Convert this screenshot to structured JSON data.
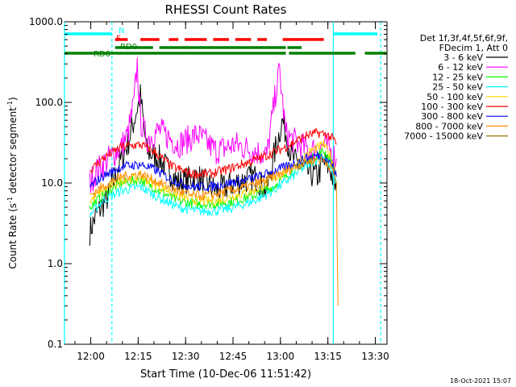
{
  "chart_data": {
    "type": "line",
    "title": "RHESSI Count Rates",
    "xlabel": "Start Time (10-Dec-06 11:51:42)",
    "ylabel_main": "Count Rate (s",
    "ylabel_sup1": "-1",
    "ylabel_mid": " detector segment",
    "ylabel_sup2": "-1",
    "ylabel_end": ")",
    "x_scale": "time_minutes_from_11:51:42",
    "xlim": [
      0,
      102
    ],
    "y_scale": "log",
    "ylim": [
      0.1,
      1000
    ],
    "x_ticks": [
      {
        "label": "12:00",
        "x": 8.3
      },
      {
        "label": "12:15",
        "x": 23.3
      },
      {
        "label": "12:30",
        "x": 38.3
      },
      {
        "label": "12:45",
        "x": 53.3
      },
      {
        "label": "13:00",
        "x": 68.3
      },
      {
        "label": "13:15",
        "x": 83.3
      },
      {
        "label": "13:30",
        "x": 98.3
      }
    ],
    "y_ticks": [
      {
        "label": "0.1",
        "y": 0.1
      },
      {
        "label": "1.0",
        "y": 1
      },
      {
        "label": "10.0",
        "y": 10
      },
      {
        "label": "100.0",
        "y": 100
      },
      {
        "label": "1000.0",
        "y": 1000
      }
    ],
    "legend_header": [
      "Det 1f,3f,4f,5f,6f,9f,",
      "FDecim 1, Att 0"
    ],
    "legend_position": "right",
    "series": [
      {
        "name": "3 - 6 keV",
        "color": "#000000",
        "x": [
          8,
          10,
          14,
          18,
          20,
          22,
          24,
          26,
          30,
          36,
          42,
          48,
          54,
          60,
          64,
          67,
          69,
          72,
          76,
          80,
          82,
          84,
          86
        ],
        "values": [
          2.5,
          4,
          7,
          20,
          30,
          60,
          120,
          25,
          20,
          10,
          12,
          8,
          10,
          12,
          8,
          30,
          60,
          20,
          14,
          12,
          18,
          15,
          8
        ]
      },
      {
        "name": "6 - 12 keV",
        "color": "#ff00ff",
        "x": [
          8,
          10,
          14,
          18,
          20,
          22,
          23,
          24,
          26,
          30,
          36,
          42,
          48,
          54,
          60,
          64,
          67,
          68,
          70,
          74,
          78,
          82,
          84,
          86
        ],
        "values": [
          10,
          14,
          20,
          28,
          40,
          100,
          300,
          60,
          35,
          45,
          30,
          40,
          25,
          30,
          25,
          22,
          150,
          250,
          40,
          30,
          25,
          30,
          25,
          20
        ]
      },
      {
        "name": "12 - 25 keV",
        "color": "#00ff00",
        "x": [
          8,
          12,
          18,
          24,
          30,
          36,
          42,
          48,
          54,
          60,
          66,
          72,
          78,
          82,
          84,
          86
        ],
        "values": [
          5,
          7,
          10,
          11,
          8,
          6,
          5.5,
          5.5,
          6,
          7,
          9,
          14,
          20,
          25,
          20,
          12
        ]
      },
      {
        "name": "25 - 50 keV",
        "color": "#00ffff",
        "x": [
          8,
          12,
          18,
          24,
          30,
          36,
          42,
          48,
          54,
          60,
          66,
          72,
          78,
          82,
          84,
          86
        ],
        "values": [
          4,
          6,
          8,
          9,
          6.5,
          5,
          4.5,
          4.5,
          5,
          6,
          8,
          12,
          18,
          22,
          15,
          10
        ]
      },
      {
        "name": "50 - 100 keV",
        "color": "#ffd700",
        "x": [
          8,
          12,
          18,
          24,
          30,
          36,
          42,
          48,
          54,
          60,
          66,
          72,
          78,
          82,
          84,
          86
        ],
        "values": [
          6,
          8,
          11,
          12,
          9,
          7,
          6,
          6,
          7,
          8,
          11,
          16,
          25,
          30,
          22,
          14
        ]
      },
      {
        "name": "100 - 300 keV",
        "color": "#ff0000",
        "x": [
          8,
          12,
          18,
          24,
          28,
          34,
          40,
          46,
          52,
          58,
          64,
          70,
          76,
          80,
          83,
          85,
          86
        ],
        "values": [
          14,
          20,
          28,
          30,
          25,
          16,
          13,
          13,
          15,
          18,
          22,
          28,
          38,
          42,
          40,
          35,
          30
        ]
      },
      {
        "name": "300 - 800 keV",
        "color": "#0000ff",
        "x": [
          8,
          12,
          18,
          24,
          28,
          34,
          40,
          46,
          52,
          58,
          64,
          70,
          76,
          80,
          83,
          85,
          86
        ],
        "values": [
          9,
          12,
          16,
          17,
          15,
          11,
          9,
          9,
          10,
          11,
          13,
          16,
          20,
          22,
          20,
          16,
          12
        ]
      },
      {
        "name": "800 - 7000 keV",
        "color": "#ff8c00",
        "x": [
          8,
          12,
          18,
          24,
          28,
          34,
          40,
          46,
          52,
          58,
          64,
          70,
          76,
          80,
          83,
          85,
          86,
          86.5
        ],
        "values": [
          7,
          9,
          12,
          13,
          11,
          8.5,
          7,
          7,
          8,
          9,
          11,
          14,
          18,
          20,
          18,
          14,
          10,
          0.3
        ]
      },
      {
        "name": "7000 - 15000 keV",
        "color": "#a0700a",
        "x": [],
        "values": []
      }
    ],
    "status_bars": [
      {
        "label": "N",
        "color": "#00ffff",
        "segments": [
          [
            0,
            15
          ],
          [
            85,
            99
          ]
        ]
      },
      {
        "label": "F",
        "color": "#ff0000",
        "segments": [
          [
            16,
            20
          ],
          [
            24,
            30
          ],
          [
            33,
            36
          ],
          [
            38,
            45
          ],
          [
            47,
            52
          ],
          [
            54,
            59
          ],
          [
            61,
            64
          ],
          [
            69,
            82
          ]
        ]
      },
      {
        "label": "RD0",
        "color": "#008000",
        "segments": [
          [
            16,
            28
          ],
          [
            30,
            70
          ],
          [
            70.5,
            75
          ]
        ]
      },
      {
        "label": "RD6",
        "color": "#008000",
        "segments": [
          [
            0,
            16
          ],
          [
            16,
            40
          ],
          [
            40,
            70
          ],
          [
            71,
            92
          ],
          [
            95,
            102
          ]
        ]
      }
    ],
    "vertical_markers": [
      {
        "x": 0,
        "color": "#00ffff",
        "style": "solid"
      },
      {
        "x": 15,
        "color": "#00ffff",
        "style": "dashed"
      },
      {
        "x": 85,
        "color": "#00ffff",
        "style": "solid"
      },
      {
        "x": 100,
        "color": "#00ffff",
        "style": "dashed"
      }
    ]
  },
  "footer_date": "18-Oct-2021 15:07"
}
